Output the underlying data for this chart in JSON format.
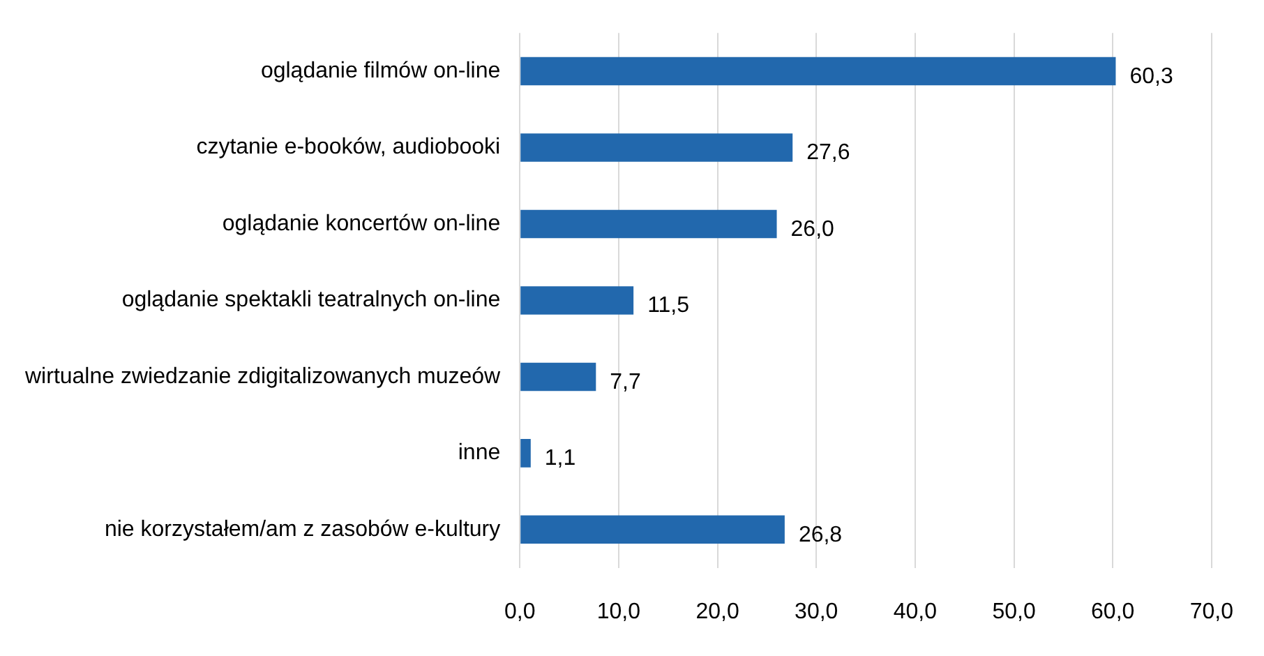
{
  "chart_data": {
    "type": "bar",
    "orientation": "horizontal",
    "categories": [
      "oglądanie filmów on-line",
      "czytanie e-booków, audiobooki",
      "oglądanie koncertów on-line",
      "oglądanie spektakli teatralnych on-line",
      "wirtualne zwiedzanie zdigitalizowanych muzeów",
      "inne",
      "nie korzystałem/am z zasobów e-kultury"
    ],
    "values": [
      60.3,
      27.6,
      26.0,
      11.5,
      7.7,
      1.1,
      26.8
    ],
    "value_labels": [
      "60,3",
      "27,6",
      "26,0",
      "11,5",
      "7,7",
      "1,1",
      "26,8"
    ],
    "color": "#2268ad",
    "xlim": [
      0,
      70
    ],
    "xticks": [
      {
        "value": 0,
        "label": "0,0"
      },
      {
        "value": 10,
        "label": "10,0"
      },
      {
        "value": 20,
        "label": "20,0"
      },
      {
        "value": 30,
        "label": "30,0"
      },
      {
        "value": 40,
        "label": "40,0"
      },
      {
        "value": 50,
        "label": "50,0"
      },
      {
        "value": 60,
        "label": "60,0"
      },
      {
        "value": 70,
        "label": "70,0"
      }
    ],
    "grid": "x",
    "legend": false
  }
}
